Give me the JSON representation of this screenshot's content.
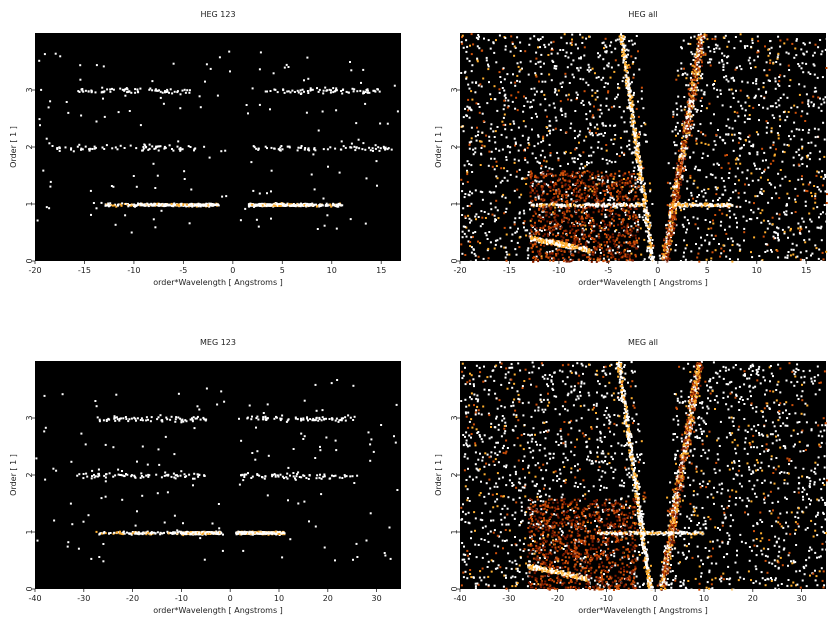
{
  "chart_data": [
    {
      "type": "heatmap",
      "title": "HEG 123",
      "xlabel": "order*Wavelength [ Angstroms ]",
      "ylabel": "Order [ 1 ]",
      "xlim": [
        -20,
        17
      ],
      "ylim": [
        0,
        4
      ],
      "xticks": [
        -20,
        -15,
        -10,
        -5,
        0,
        5,
        10,
        15
      ],
      "yticks": [
        0,
        1,
        2,
        3
      ],
      "grid": false,
      "colormap": [
        "#000000",
        "#7a1a00",
        "#d0500a",
        "#ffb030",
        "#ffffff"
      ],
      "bands": [
        {
          "order": 1,
          "x_ranges": [
            [
              -13,
              -1.5
            ],
            [
              1.5,
              11
            ]
          ],
          "peak_ranges": [
            [
              -9.5,
              -2
            ],
            [
              1.5,
              8
            ]
          ],
          "intensity": "high"
        },
        {
          "order": 2,
          "x_ranges": [
            [
              -18,
              -3
            ],
            [
              2,
              16
            ]
          ],
          "intensity": "low"
        },
        {
          "order": 3,
          "x_ranges": [
            [
              -16,
              -4
            ],
            [
              3,
              15
            ]
          ],
          "intensity": "low"
        }
      ]
    },
    {
      "type": "heatmap",
      "title": "HEG all",
      "xlabel": "order*Wavelength [ Angstroms ]",
      "ylabel": "Order [ 1 ]",
      "xlim": [
        -20,
        17
      ],
      "ylim": [
        0,
        4
      ],
      "xticks": [
        -20,
        -15,
        -10,
        -5,
        0,
        5,
        10,
        15
      ],
      "yticks": [
        0,
        1,
        2,
        3
      ],
      "grid": false,
      "colormap": [
        "#000000",
        "#7a1a00",
        "#d0500a",
        "#ffb030",
        "#ffffff"
      ],
      "bands": [
        {
          "order": 1,
          "x_ranges": [
            [
              -13,
              -1.5
            ],
            [
              1.5,
              7.5
            ]
          ],
          "intensity": "high"
        }
      ],
      "features": [
        "diffuse background across full plane",
        "bright diagonal streaks near zero order",
        "bright arc at lower left (x -13 to -7, order 0.2-0.4)"
      ]
    },
    {
      "type": "heatmap",
      "title": "MEG 123",
      "xlabel": "order*Wavelength [ Angstroms ]",
      "ylabel": "Order [ 1 ]",
      "xlim": [
        -40,
        35
      ],
      "ylim": [
        0,
        4
      ],
      "xticks": [
        -40,
        -30,
        -20,
        -10,
        0,
        10,
        20,
        30
      ],
      "yticks": [
        0,
        1,
        2,
        3
      ],
      "grid": false,
      "colormap": [
        "#000000",
        "#7a1a00",
        "#d0500a",
        "#ffb030",
        "#ffffff"
      ],
      "bands": [
        {
          "order": 1,
          "x_ranges": [
            [
              -28,
              -2
            ],
            [
              1,
              11
            ]
          ],
          "peak_ranges": [
            [
              -10,
              -2
            ],
            [
              1,
              10
            ]
          ],
          "intensity": "high"
        },
        {
          "order": 2,
          "x_ranges": [
            [
              -32,
              -5
            ],
            [
              2,
              25
            ]
          ],
          "intensity": "low"
        },
        {
          "order": 3,
          "x_ranges": [
            [
              -28,
              -5
            ],
            [
              3,
              25
            ]
          ],
          "intensity": "low"
        }
      ]
    },
    {
      "type": "heatmap",
      "title": "MEG all",
      "xlabel": "order*Wavelength [ Angstroms ]",
      "ylabel": "Order [ 1 ]",
      "xlim": [
        -40,
        35
      ],
      "ylim": [
        0,
        4
      ],
      "xticks": [
        -40,
        -30,
        -20,
        -10,
        0,
        10,
        20,
        30
      ],
      "yticks": [
        0,
        1,
        2,
        3
      ],
      "grid": false,
      "colormap": [
        "#000000",
        "#7a1a00",
        "#d0500a",
        "#ffb030",
        "#ffffff"
      ],
      "bands": [
        {
          "order": 1,
          "x_ranges": [
            [
              -12,
              10
            ]
          ],
          "intensity": "high"
        }
      ],
      "features": [
        "diffuse background across full plane",
        "bright diagonal streaks near zero order",
        "bright arc at lower left (x -25 to -17, order 0.3-0.5)"
      ]
    }
  ]
}
